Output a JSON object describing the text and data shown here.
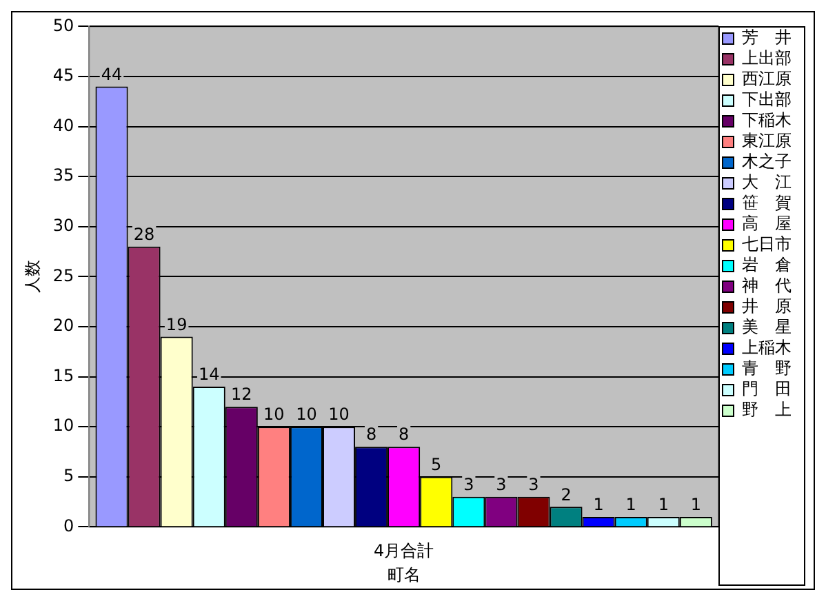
{
  "chart_data": {
    "type": "bar",
    "categories": [
      "4月合計"
    ],
    "xlabel": "町名",
    "ylabel": "人数",
    "ylim": [
      0,
      50
    ],
    "yticks": [
      0,
      5,
      10,
      15,
      20,
      25,
      30,
      35,
      40,
      45,
      50
    ],
    "grid": "y",
    "legend": "right",
    "data_labels": true,
    "series": [
      {
        "name": "芳　井",
        "color": "#9999ff",
        "values": [
          44
        ]
      },
      {
        "name": "上出部",
        "color": "#993366",
        "values": [
          28
        ]
      },
      {
        "name": "西江原",
        "color": "#ffffcc",
        "values": [
          19
        ]
      },
      {
        "name": "下出部",
        "color": "#ccffff",
        "values": [
          14
        ]
      },
      {
        "name": "下稲木",
        "color": "#660066",
        "values": [
          12
        ]
      },
      {
        "name": "東江原",
        "color": "#ff8080",
        "values": [
          10
        ]
      },
      {
        "name": "木之子",
        "color": "#0066cc",
        "values": [
          10
        ]
      },
      {
        "name": "大　江",
        "color": "#ccccff",
        "values": [
          10
        ]
      },
      {
        "name": "笹　賀",
        "color": "#000080",
        "values": [
          8
        ]
      },
      {
        "name": "高　屋",
        "color": "#ff00ff",
        "values": [
          8
        ]
      },
      {
        "name": "七日市",
        "color": "#ffff00",
        "values": [
          5
        ]
      },
      {
        "name": "岩　倉",
        "color": "#00ffff",
        "values": [
          3
        ]
      },
      {
        "name": "神　代",
        "color": "#800080",
        "values": [
          3
        ]
      },
      {
        "name": "井　原",
        "color": "#800000",
        "values": [
          3
        ]
      },
      {
        "name": "美　星",
        "color": "#008080",
        "values": [
          2
        ]
      },
      {
        "name": "上稲木",
        "color": "#0000ff",
        "values": [
          1
        ]
      },
      {
        "name": "青　野",
        "color": "#00ccff",
        "values": [
          1
        ]
      },
      {
        "name": "門　田",
        "color": "#ccffff",
        "values": [
          1
        ]
      },
      {
        "name": "野　上",
        "color": "#ccffcc",
        "values": [
          1
        ]
      }
    ]
  }
}
